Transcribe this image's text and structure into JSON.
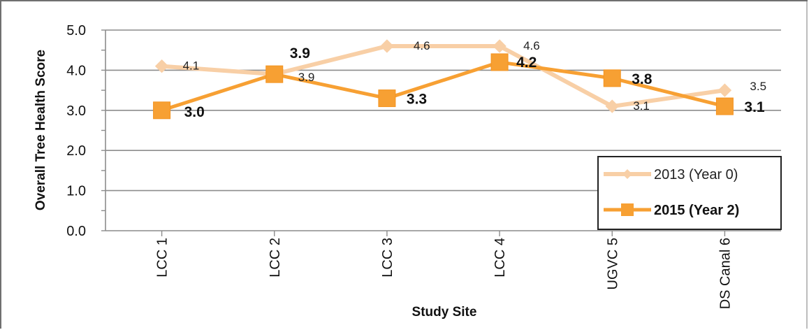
{
  "chart_data": {
    "type": "line",
    "title": "",
    "xlabel": "Study Site",
    "ylabel": "Overall Tree Health Score",
    "categories": [
      "LCC 1",
      "LCC 2",
      "LCC 3",
      "LCC 4",
      "UGVC 5",
      "DS Canal 6"
    ],
    "ylim": [
      0,
      5
    ],
    "yticks": [
      "0.0",
      "1.0",
      "2.0",
      "3.0",
      "4.0",
      "5.0"
    ],
    "grid": true,
    "legend_position": "bottom-right",
    "series": [
      {
        "name": "2013 (Year 0)",
        "values": [
          4.1,
          3.9,
          4.6,
          4.6,
          3.1,
          3.5
        ],
        "labels": [
          "4.1",
          "3.9",
          "4.6",
          "4.6",
          "3.1",
          "3.5"
        ],
        "color": "#f8cfa6",
        "marker": "diamond"
      },
      {
        "name": "2015 (Year 2)",
        "values": [
          3.0,
          3.9,
          3.3,
          4.2,
          3.8,
          3.1
        ],
        "labels": [
          "3.0",
          "3.9",
          "3.3",
          "4.2",
          "3.8",
          "3.1"
        ],
        "color": "#f7a033",
        "marker": "square"
      }
    ]
  }
}
